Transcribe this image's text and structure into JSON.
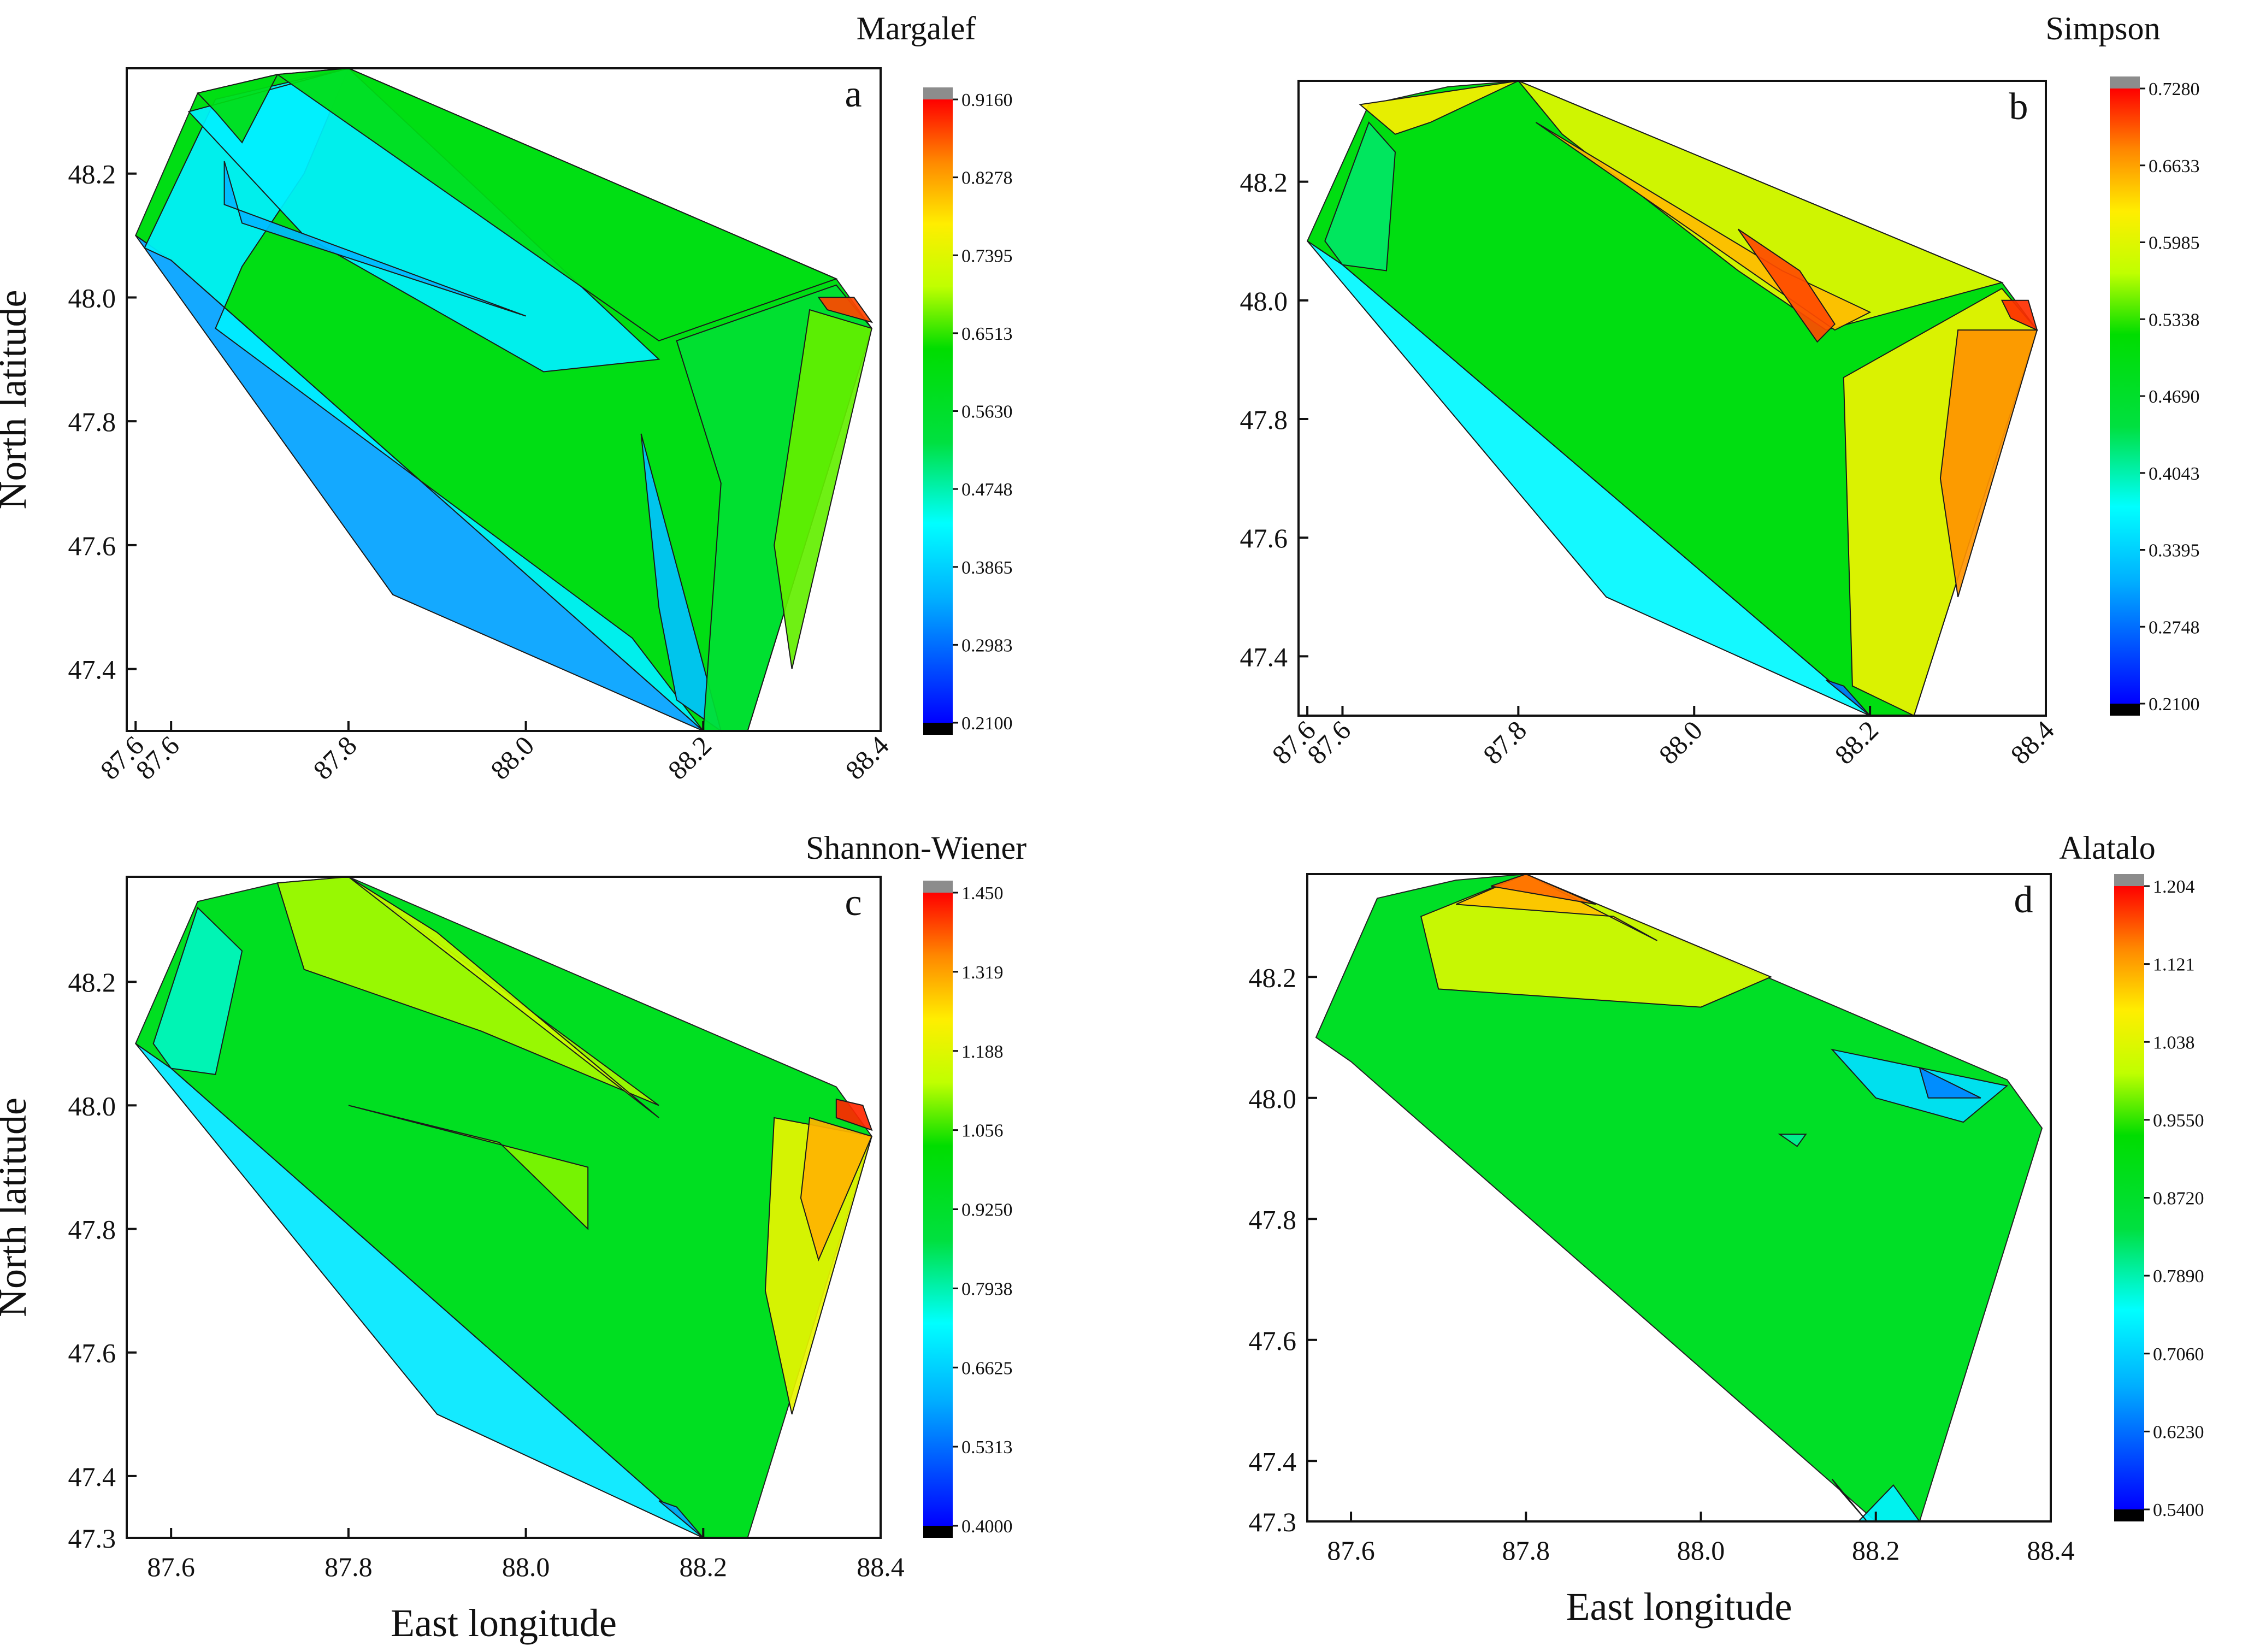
{
  "chart_data": [
    {
      "type": "heatmap",
      "panel_letter": "a",
      "title": "Margalef",
      "xlabel": "",
      "ylabel": "North latitude",
      "xlim": [
        87.55,
        88.4
      ],
      "ylim": [
        47.3,
        48.37
      ],
      "x_ticks": [
        "87.6",
        "87.6",
        "87.8",
        "88.0",
        "88.2",
        "88.4"
      ],
      "x_tick_values": [
        87.56,
        87.6,
        87.8,
        88.0,
        88.2,
        88.4
      ],
      "x_tick_rotated": true,
      "y_ticks": [
        "47.4",
        "47.6",
        "47.8",
        "48.0",
        "48.2"
      ],
      "y_tick_values": [
        47.4,
        47.6,
        47.8,
        48.0,
        48.2
      ],
      "colorbar_labels": [
        "0.9160",
        "0.8278",
        "0.7395",
        "0.6513",
        "0.5630",
        "0.4748",
        "0.3865",
        "0.2983",
        "0.2100"
      ],
      "value_range": [
        0.21,
        0.916
      ],
      "base_value": 0.6,
      "regions": [
        {
          "value": 0.34,
          "points": [
            [
              87.56,
              48.1
            ],
            [
              87.6,
              48.06
            ],
            [
              88.2,
              47.3
            ],
            [
              87.85,
              47.52
            ],
            [
              87.56,
              48.1
            ]
          ]
        },
        {
          "value": 0.42,
          "points": [
            [
              87.57,
              48.08
            ],
            [
              87.65,
              48.32
            ],
            [
              87.8,
              48.37
            ],
            [
              87.75,
              48.2
            ],
            [
              87.68,
              48.05
            ],
            [
              87.65,
              47.95
            ],
            [
              88.12,
              47.45
            ],
            [
              88.2,
              47.3
            ],
            [
              87.6,
              48.06
            ]
          ]
        },
        {
          "value": 0.42,
          "points": [
            [
              87.62,
              48.3
            ],
            [
              87.8,
              48.37
            ],
            [
              88.15,
              47.9
            ],
            [
              88.02,
              47.88
            ],
            [
              87.75,
              48.1
            ]
          ]
        },
        {
          "value": 0.36,
          "points": [
            [
              87.66,
              48.22
            ],
            [
              87.68,
              48.12
            ],
            [
              88.0,
              47.97
            ],
            [
              87.66,
              48.15
            ]
          ]
        },
        {
          "value": 0.37,
          "points": [
            [
              88.13,
              47.78
            ],
            [
              88.22,
              47.3
            ],
            [
              88.17,
              47.35
            ],
            [
              88.15,
              47.5
            ]
          ]
        },
        {
          "value": 0.6,
          "points": [
            [
              87.63,
              48.33
            ],
            [
              87.72,
              48.36
            ],
            [
              87.68,
              48.25
            ],
            [
              87.65,
              48.3
            ]
          ]
        },
        {
          "value": 0.6,
          "points": [
            [
              87.72,
              48.36
            ],
            [
              87.8,
              48.37
            ],
            [
              88.35,
              48.03
            ],
            [
              88.15,
              47.93
            ],
            [
              87.82,
              48.26
            ]
          ]
        },
        {
          "value": 0.55,
          "points": [
            [
              88.17,
              47.93
            ],
            [
              88.35,
              48.02
            ],
            [
              88.39,
              47.95
            ],
            [
              88.25,
              47.3
            ],
            [
              88.2,
              47.3
            ],
            [
              88.22,
              47.7
            ]
          ]
        },
        {
          "value": 0.67,
          "points": [
            [
              88.32,
              47.98
            ],
            [
              88.39,
              47.95
            ],
            [
              88.3,
              47.4
            ],
            [
              88.28,
              47.6
            ]
          ]
        },
        {
          "value": 0.88,
          "points": [
            [
              88.33,
              48.0
            ],
            [
              88.37,
              48.0
            ],
            [
              88.39,
              47.96
            ],
            [
              88.34,
              47.98
            ]
          ]
        }
      ]
    },
    {
      "type": "heatmap",
      "panel_letter": "b",
      "title": "Simpson",
      "xlabel": "",
      "ylabel": "",
      "xlim": [
        87.55,
        88.4
      ],
      "ylim": [
        47.3,
        48.37
      ],
      "x_ticks": [
        "87.6",
        "87.6",
        "87.8",
        "88.0",
        "88.2",
        "88.4"
      ],
      "x_tick_values": [
        87.56,
        87.6,
        87.8,
        88.0,
        88.2,
        88.4
      ],
      "x_tick_rotated": true,
      "y_ticks": [
        "47.4",
        "47.6",
        "47.8",
        "48.0",
        "48.2"
      ],
      "y_tick_values": [
        47.4,
        47.6,
        47.8,
        48.0,
        48.2
      ],
      "colorbar_labels": [
        "0.7280",
        "0.6633",
        "0.5985",
        "0.5338",
        "0.4690",
        "0.4043",
        "0.3395",
        "0.2748",
        "0.2100"
      ],
      "value_range": [
        0.21,
        0.728
      ],
      "base_value": 0.5,
      "regions": [
        {
          "value": 0.37,
          "points": [
            [
              87.56,
              48.1
            ],
            [
              87.6,
              48.06
            ],
            [
              88.2,
              47.3
            ],
            [
              87.9,
              47.5
            ],
            [
              87.56,
              48.1
            ]
          ]
        },
        {
          "value": 0.43,
          "points": [
            [
              87.58,
              48.1
            ],
            [
              87.63,
              48.3
            ],
            [
              87.66,
              48.25
            ],
            [
              87.65,
              48.05
            ],
            [
              87.6,
              48.06
            ]
          ]
        },
        {
          "value": 0.62,
          "points": [
            [
              87.62,
              48.33
            ],
            [
              87.8,
              48.37
            ],
            [
              87.7,
              48.3
            ],
            [
              87.66,
              48.28
            ]
          ]
        },
        {
          "value": 0.6,
          "points": [
            [
              87.8,
              48.37
            ],
            [
              88.35,
              48.03
            ],
            [
              88.15,
              47.95
            ],
            [
              88.05,
              48.05
            ],
            [
              87.85,
              48.28
            ]
          ]
        },
        {
          "value": 0.65,
          "points": [
            [
              87.82,
              48.3
            ],
            [
              88.16,
              47.95
            ],
            [
              88.2,
              47.98
            ],
            [
              88.1,
              48.05
            ]
          ]
        },
        {
          "value": 0.7,
          "points": [
            [
              88.05,
              48.12
            ],
            [
              88.14,
              47.93
            ],
            [
              88.16,
              47.96
            ],
            [
              88.12,
              48.05
            ]
          ]
        },
        {
          "value": 0.61,
          "points": [
            [
              88.17,
              47.87
            ],
            [
              88.35,
              48.02
            ],
            [
              88.39,
              47.95
            ],
            [
              88.25,
              47.3
            ],
            [
              88.18,
              47.35
            ]
          ]
        },
        {
          "value": 0.67,
          "points": [
            [
              88.3,
              47.95
            ],
            [
              88.39,
              47.95
            ],
            [
              88.3,
              47.5
            ],
            [
              88.28,
              47.7
            ]
          ]
        },
        {
          "value": 0.71,
          "points": [
            [
              88.35,
              48.0
            ],
            [
              88.38,
              48.0
            ],
            [
              88.39,
              47.95
            ],
            [
              88.36,
              47.97
            ]
          ]
        },
        {
          "value": 0.28,
          "points": [
            [
              88.17,
              47.35
            ],
            [
              88.2,
              47.3
            ],
            [
              88.15,
              47.36
            ]
          ]
        }
      ]
    },
    {
      "type": "heatmap",
      "panel_letter": "c",
      "title": "Shannon-Wiener",
      "xlabel": "East longitude",
      "ylabel": "North latitude",
      "xlim": [
        87.55,
        88.4
      ],
      "ylim": [
        47.3,
        48.37
      ],
      "x_ticks": [
        "87.6",
        "87.8",
        "88.0",
        "88.2",
        "88.4"
      ],
      "x_tick_values": [
        87.6,
        87.8,
        88.0,
        88.2,
        88.4
      ],
      "x_tick_rotated": false,
      "y_ticks": [
        "47.3",
        "47.4",
        "47.6",
        "47.8",
        "48.0",
        "48.2"
      ],
      "y_tick_values": [
        47.3,
        47.4,
        47.6,
        47.8,
        48.0,
        48.2
      ],
      "colorbar_labels": [
        "1.450",
        "1.319",
        "1.188",
        "1.056",
        "0.9250",
        "0.7938",
        "0.6625",
        "0.5313",
        "0.4000"
      ],
      "value_range": [
        0.4,
        1.45
      ],
      "base_value": 0.95,
      "regions": [
        {
          "value": 0.7,
          "points": [
            [
              87.56,
              48.1
            ],
            [
              87.6,
              48.06
            ],
            [
              88.2,
              47.3
            ],
            [
              87.9,
              47.5
            ],
            [
              87.56,
              48.1
            ]
          ]
        },
        {
          "value": 0.78,
          "points": [
            [
              87.58,
              48.1
            ],
            [
              87.63,
              48.32
            ],
            [
              87.68,
              48.25
            ],
            [
              87.65,
              48.05
            ],
            [
              87.6,
              48.06
            ]
          ]
        },
        {
          "value": 1.12,
          "points": [
            [
              87.72,
              48.36
            ],
            [
              87.8,
              48.37
            ],
            [
              88.15,
              48.0
            ],
            [
              87.95,
              48.12
            ],
            [
              87.75,
              48.22
            ]
          ]
        },
        {
          "value": 1.15,
          "points": [
            [
              87.8,
              48.37
            ],
            [
              88.15,
              47.98
            ],
            [
              88.05,
              48.1
            ],
            [
              87.9,
              48.28
            ]
          ]
        },
        {
          "value": 1.1,
          "points": [
            [
              87.8,
              48.0
            ],
            [
              88.07,
              47.9
            ],
            [
              88.07,
              47.8
            ],
            [
              87.97,
              47.94
            ]
          ]
        },
        {
          "value": 1.2,
          "points": [
            [
              88.28,
              47.98
            ],
            [
              88.39,
              47.95
            ],
            [
              88.3,
              47.5
            ],
            [
              88.27,
              47.7
            ]
          ]
        },
        {
          "value": 1.3,
          "points": [
            [
              88.32,
              47.98
            ],
            [
              88.39,
              47.95
            ],
            [
              88.33,
              47.75
            ],
            [
              88.31,
              47.85
            ]
          ]
        },
        {
          "value": 1.42,
          "points": [
            [
              88.35,
              48.01
            ],
            [
              88.38,
              48.0
            ],
            [
              88.39,
              47.96
            ],
            [
              88.35,
              47.98
            ]
          ]
        },
        {
          "value": 0.6,
          "points": [
            [
              88.17,
              47.35
            ],
            [
              88.2,
              47.3
            ],
            [
              88.15,
              47.36
            ]
          ]
        }
      ]
    },
    {
      "type": "heatmap",
      "panel_letter": "d",
      "title": "Alatalo",
      "xlabel": "East longitude",
      "ylabel": "",
      "xlim": [
        87.55,
        88.4
      ],
      "ylim": [
        47.3,
        48.37
      ],
      "x_ticks": [
        "87.6",
        "87.8",
        "88.0",
        "88.2",
        "88.4"
      ],
      "x_tick_values": [
        87.6,
        87.8,
        88.0,
        88.2,
        88.4
      ],
      "x_tick_rotated": false,
      "y_ticks": [
        "47.3",
        "47.4",
        "47.6",
        "47.8",
        "48.0",
        "48.2"
      ],
      "y_tick_values": [
        47.3,
        47.4,
        47.6,
        47.8,
        48.0,
        48.2
      ],
      "colorbar_labels": [
        "1.204",
        "1.121",
        "1.038",
        "0.9550",
        "0.8720",
        "0.7890",
        "0.7060",
        "0.6230",
        "0.5400"
      ],
      "value_range": [
        0.54,
        1.204
      ],
      "base_value": 0.88,
      "regions": [
        {
          "value": 1.03,
          "points": [
            [
              87.68,
              48.3
            ],
            [
              87.8,
              48.37
            ],
            [
              88.08,
              48.2
            ],
            [
              88.0,
              48.15
            ],
            [
              87.7,
              48.18
            ]
          ]
        },
        {
          "value": 1.1,
          "points": [
            [
              87.72,
              48.32
            ],
            [
              87.8,
              48.37
            ],
            [
              87.95,
              48.26
            ],
            [
              87.9,
              48.3
            ]
          ]
        },
        {
          "value": 1.15,
          "points": [
            [
              87.76,
              48.35
            ],
            [
              87.8,
              48.37
            ],
            [
              87.88,
              48.32
            ]
          ]
        },
        {
          "value": 0.72,
          "points": [
            [
              88.15,
              48.08
            ],
            [
              88.35,
              48.02
            ],
            [
              88.3,
              47.96
            ],
            [
              88.2,
              48.0
            ]
          ]
        },
        {
          "value": 0.64,
          "points": [
            [
              88.25,
              48.05
            ],
            [
              88.32,
              48.0
            ],
            [
              88.26,
              48.0
            ]
          ]
        },
        {
          "value": 0.8,
          "points": [
            [
              88.09,
              47.94
            ],
            [
              88.12,
              47.94
            ],
            [
              88.11,
              47.92
            ]
          ]
        },
        {
          "value": 0.74,
          "points": [
            [
              88.18,
              47.3
            ],
            [
              88.25,
              47.3
            ],
            [
              88.22,
              47.36
            ]
          ]
        },
        {
          "value": 0.6,
          "points": [
            [
              88.16,
              47.35
            ],
            [
              88.19,
              47.3
            ],
            [
              88.15,
              47.37
            ]
          ]
        }
      ]
    }
  ]
}
